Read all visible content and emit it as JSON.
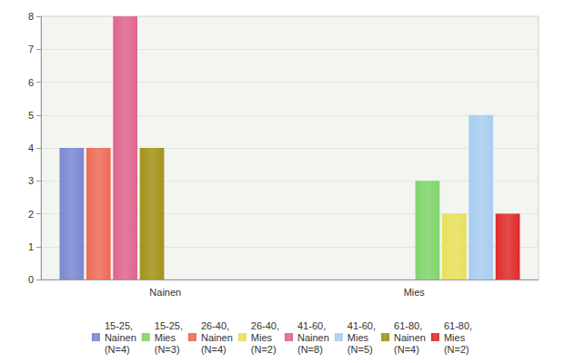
{
  "chart_data": {
    "type": "bar",
    "categories": [
      "Nainen",
      "Mies"
    ],
    "series": [
      {
        "name": "15-25, Nainen (N=4)",
        "color": "#7b88d0",
        "values": [
          4,
          null
        ]
      },
      {
        "name": "15-25, Mies (N=3)",
        "color": "#80d46c",
        "values": [
          null,
          3
        ]
      },
      {
        "name": "26-40, Nainen (N=4)",
        "color": "#ee6b56",
        "values": [
          4,
          null
        ]
      },
      {
        "name": "26-40, Mies (N=2)",
        "color": "#e8e05c",
        "values": [
          null,
          2
        ]
      },
      {
        "name": "41-60, Nainen (N=8)",
        "color": "#e0648f",
        "values": [
          8,
          null
        ]
      },
      {
        "name": "41-60, Mies (N=5)",
        "color": "#a8cdf0",
        "values": [
          null,
          5
        ]
      },
      {
        "name": "61-80, Nainen (N=4)",
        "color": "#a39318",
        "values": [
          4,
          null
        ]
      },
      {
        "name": "61-80, Mies (N=2)",
        "color": "#e02b2b",
        "values": [
          null,
          2
        ]
      }
    ],
    "ylim": [
      0,
      8
    ],
    "yticks": [
      0,
      1,
      2,
      3,
      4,
      5,
      6,
      7,
      8
    ],
    "grid": true,
    "legend": "bottom"
  }
}
